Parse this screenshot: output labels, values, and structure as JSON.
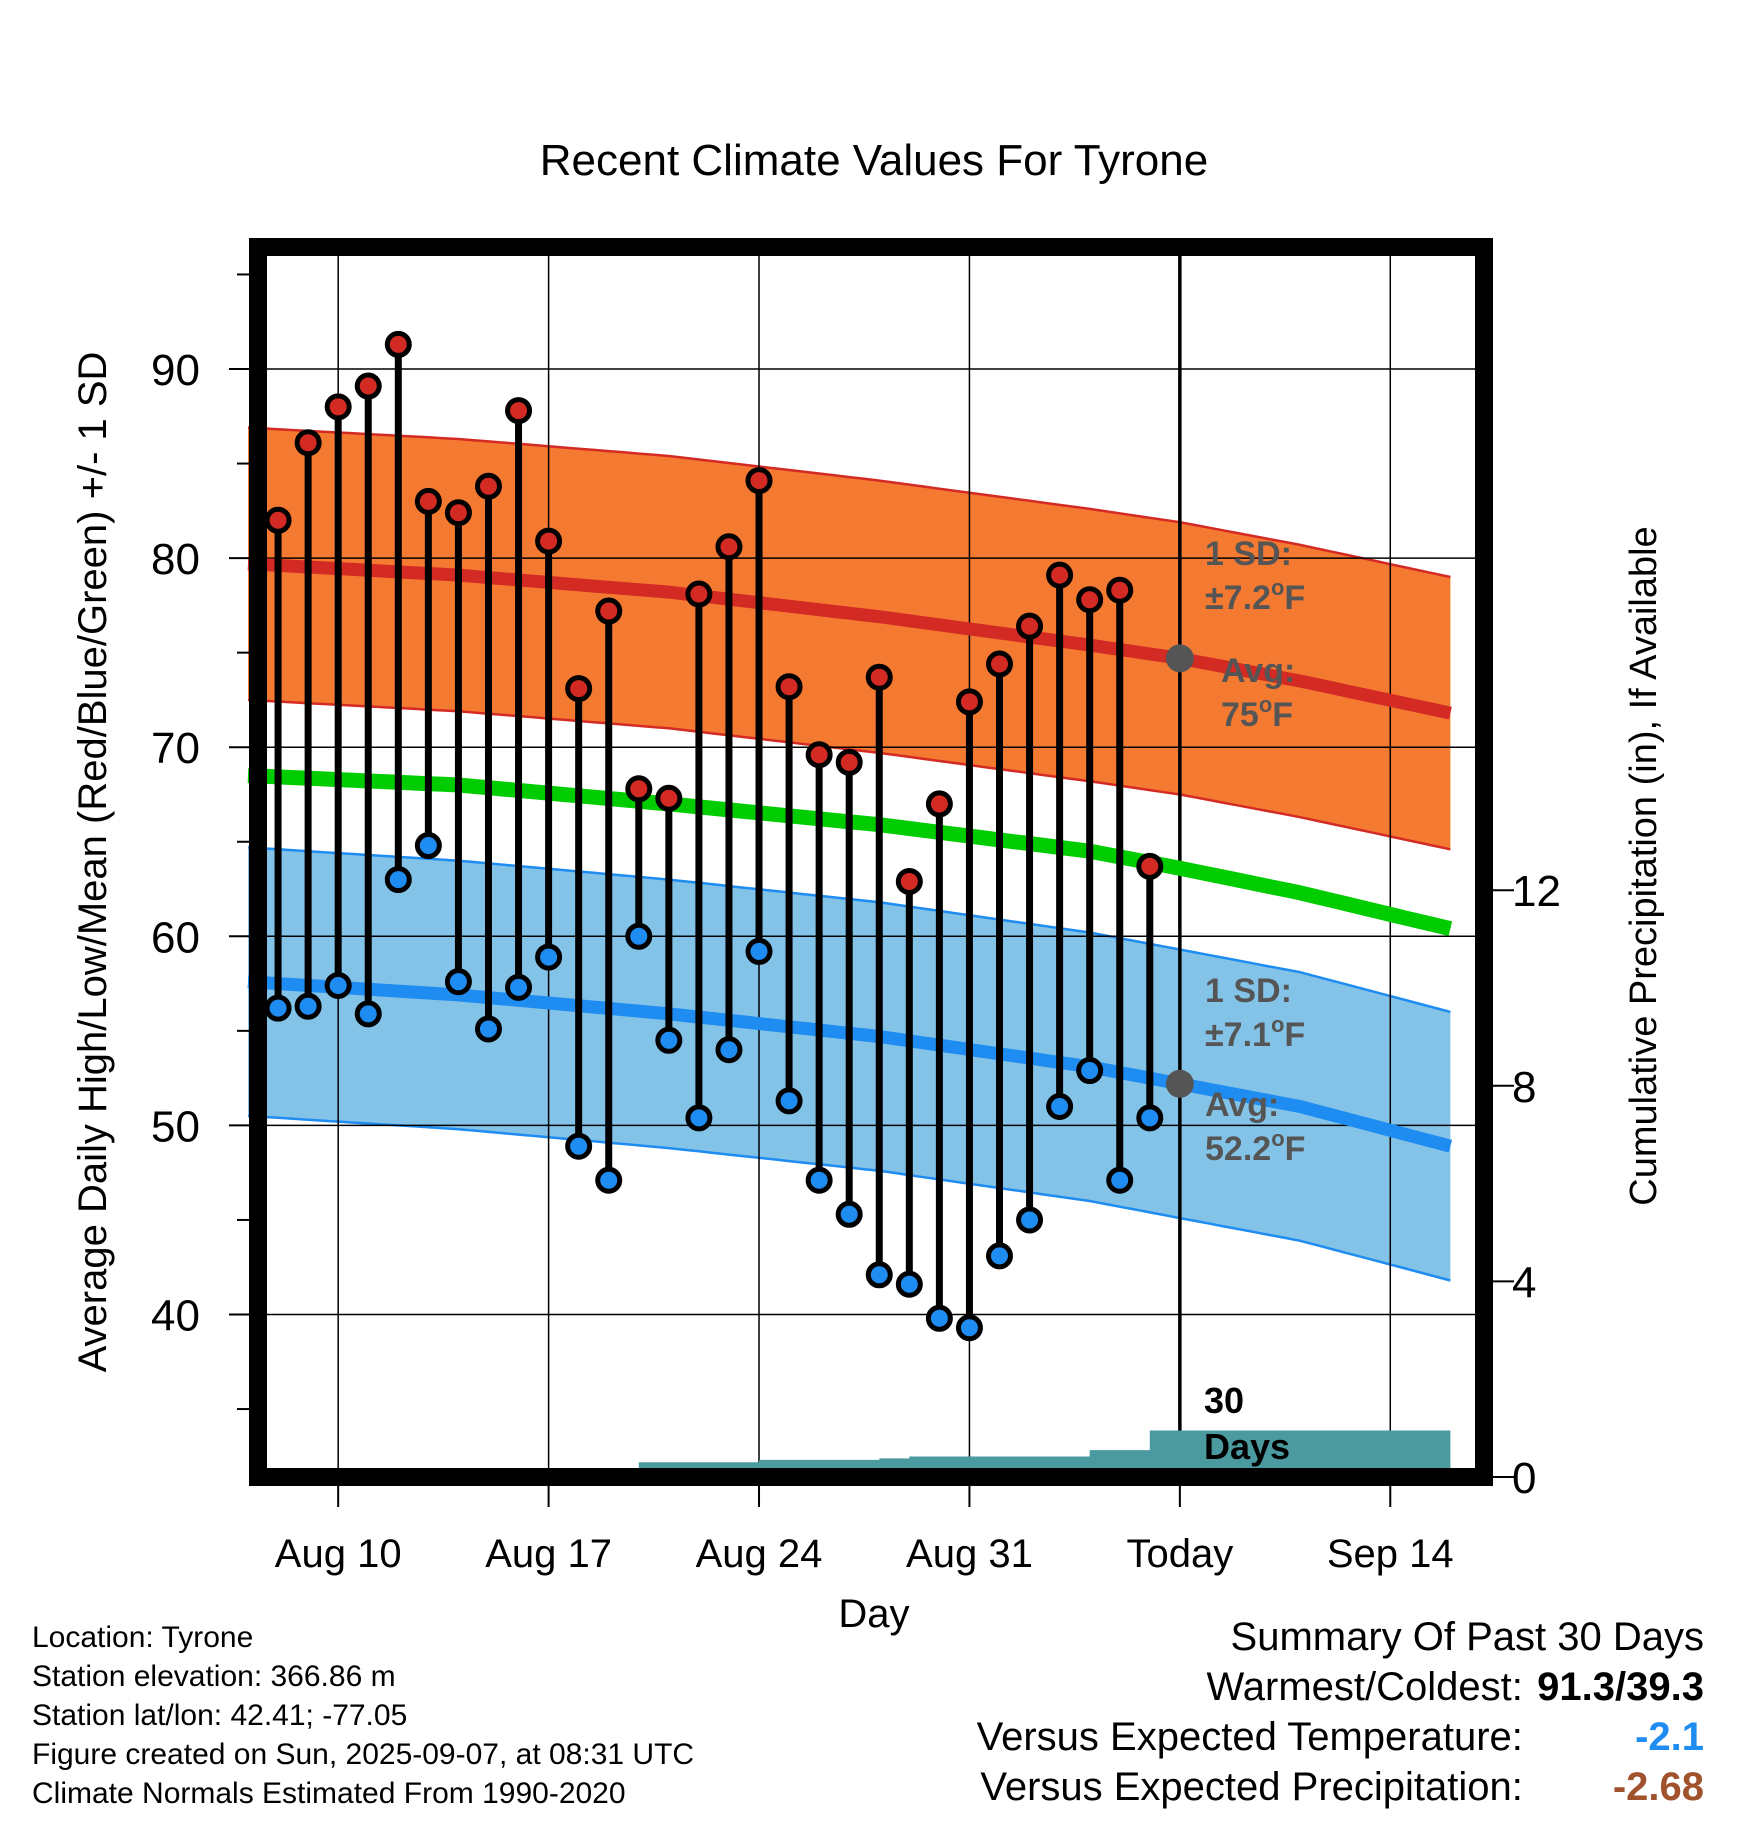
{
  "chart_data": {
    "type": "line",
    "title": "Recent Climate Values For Tyrone",
    "xlabel": "Day",
    "ylabel": "Average Daily High/Low/Mean (Red/Blue/Green) +/- 1 SD",
    "y2label": "Cumulative Precipitation (in), If Available",
    "x_start": "Aug 7",
    "x_end": "Sep 16",
    "x_tick_labels": [
      "Aug 10",
      "Aug 17",
      "Aug 24",
      "Aug 31",
      "Today",
      "Sep 14"
    ],
    "x_tick_days_from_start": [
      3,
      10,
      17,
      24,
      31,
      38
    ],
    "ylim": [
      31.5,
      97
    ],
    "y_ticks": [
      40,
      50,
      60,
      70,
      80,
      90
    ],
    "y2lim": [
      0,
      30
    ],
    "y2_ticks": [
      0,
      4,
      8,
      12
    ],
    "grid": true,
    "days": [
      "Aug 8",
      "Aug 9",
      "Aug 10",
      "Aug 11",
      "Aug 12",
      "Aug 13",
      "Aug 14",
      "Aug 15",
      "Aug 16",
      "Aug 17",
      "Aug 18",
      "Aug 19",
      "Aug 20",
      "Aug 21",
      "Aug 22",
      "Aug 23",
      "Aug 24",
      "Aug 25",
      "Aug 26",
      "Aug 27",
      "Aug 28",
      "Aug 29",
      "Aug 30",
      "Aug 31",
      "Sep 1",
      "Sep 2",
      "Sep 3",
      "Sep 4",
      "Sep 5",
      "Sep 6"
    ],
    "daily_high": [
      82.0,
      86.1,
      88.0,
      89.1,
      91.3,
      83.0,
      82.4,
      83.8,
      87.8,
      80.9,
      73.1,
      77.2,
      67.8,
      67.3,
      78.1,
      80.6,
      84.1,
      73.2,
      69.6,
      69.2,
      73.7,
      62.9,
      67.0,
      72.4,
      74.4,
      76.4,
      79.1,
      77.8,
      78.3,
      63.7
    ],
    "daily_low": [
      56.2,
      56.3,
      57.4,
      55.9,
      63.0,
      64.8,
      57.6,
      55.1,
      57.3,
      58.9,
      48.9,
      47.1,
      60.0,
      54.5,
      50.4,
      54.0,
      59.2,
      51.3,
      47.1,
      45.3,
      42.1,
      41.6,
      39.8,
      39.3,
      43.1,
      45.0,
      51.0,
      52.9,
      47.1,
      50.4
    ],
    "normal_high": {
      "days": [
        "Aug 7",
        "Aug 14",
        "Aug 21",
        "Aug 28",
        "Sep 4",
        "Sep 7",
        "Sep 11",
        "Sep 16"
      ],
      "values": [
        79.7,
        79.1,
        78.2,
        76.9,
        75.4,
        74.7,
        73.5,
        71.8
      ]
    },
    "normal_high_sd": 7.2,
    "normal_low": {
      "days": [
        "Aug 7",
        "Aug 14",
        "Aug 21",
        "Aug 28",
        "Sep 4",
        "Sep 7",
        "Sep 11",
        "Sep 16"
      ],
      "values": [
        57.6,
        56.9,
        55.9,
        54.7,
        53.1,
        52.2,
        51.0,
        48.9
      ]
    },
    "normal_low_sd": 7.1,
    "normal_mean": {
      "days": [
        "Aug 7",
        "Aug 14",
        "Aug 21",
        "Aug 28",
        "Sep 4",
        "Sep 7",
        "Sep 11",
        "Sep 16"
      ],
      "values": [
        68.5,
        68.0,
        67.0,
        65.9,
        64.5,
        63.6,
        62.3,
        60.4
      ]
    },
    "cumulative_precip": {
      "days": [
        "Aug 19",
        "Aug 20",
        "Aug 24",
        "Aug 28",
        "Aug 29",
        "Sep 3",
        "Sep 4",
        "Sep 5",
        "Sep 6",
        "Sep 16"
      ],
      "values": [
        0,
        0.3,
        0.35,
        0.38,
        0.42,
        0.42,
        0.55,
        0.55,
        0.95,
        0.95
      ]
    },
    "annotations": {
      "high_sd_line1": "1 SD:",
      "high_sd_line2": "±7.2°F",
      "high_avg_line1": "Avg:",
      "high_avg_line2": "75°F",
      "low_sd_line1": "1 SD:",
      "low_sd_line2": "±7.1°F",
      "low_avg_line1": "Avg:",
      "low_avg_line2": "52.2°F",
      "days_line1": "30",
      "days_line2": "Days"
    },
    "colors": {
      "high_band": "#f47a32",
      "high_line": "#d42a24",
      "low_band": "#84c3e8",
      "low_line": "#1e8cf0",
      "mean_line": "#00cc00",
      "precip": "#4a9aa0",
      "high_dot": "#d42a24",
      "low_dot": "#1e8cf0",
      "annotation": "#555555"
    }
  },
  "footer": {
    "location": "Location: Tyrone",
    "elevation": "Station elevation: 366.86 m",
    "latlon": "Station lat/lon: 42.41; -77.05",
    "created": "Figure created on Sun, 2025-09-07, at 08:31 UTC",
    "normals": "Climate Normals Estimated From 1990-2020"
  },
  "summary": {
    "title": "Summary Of Past 30 Days",
    "warmest_label": "Warmest/Coldest:",
    "warmest_value": "91.3/39.3",
    "temp_label": "Versus Expected Temperature:",
    "temp_value": "-2.1",
    "temp_color": "#1e8cf0",
    "precip_label": "Versus Expected Precipitation:",
    "precip_value": "-2.68",
    "precip_color": "#a0522d"
  }
}
